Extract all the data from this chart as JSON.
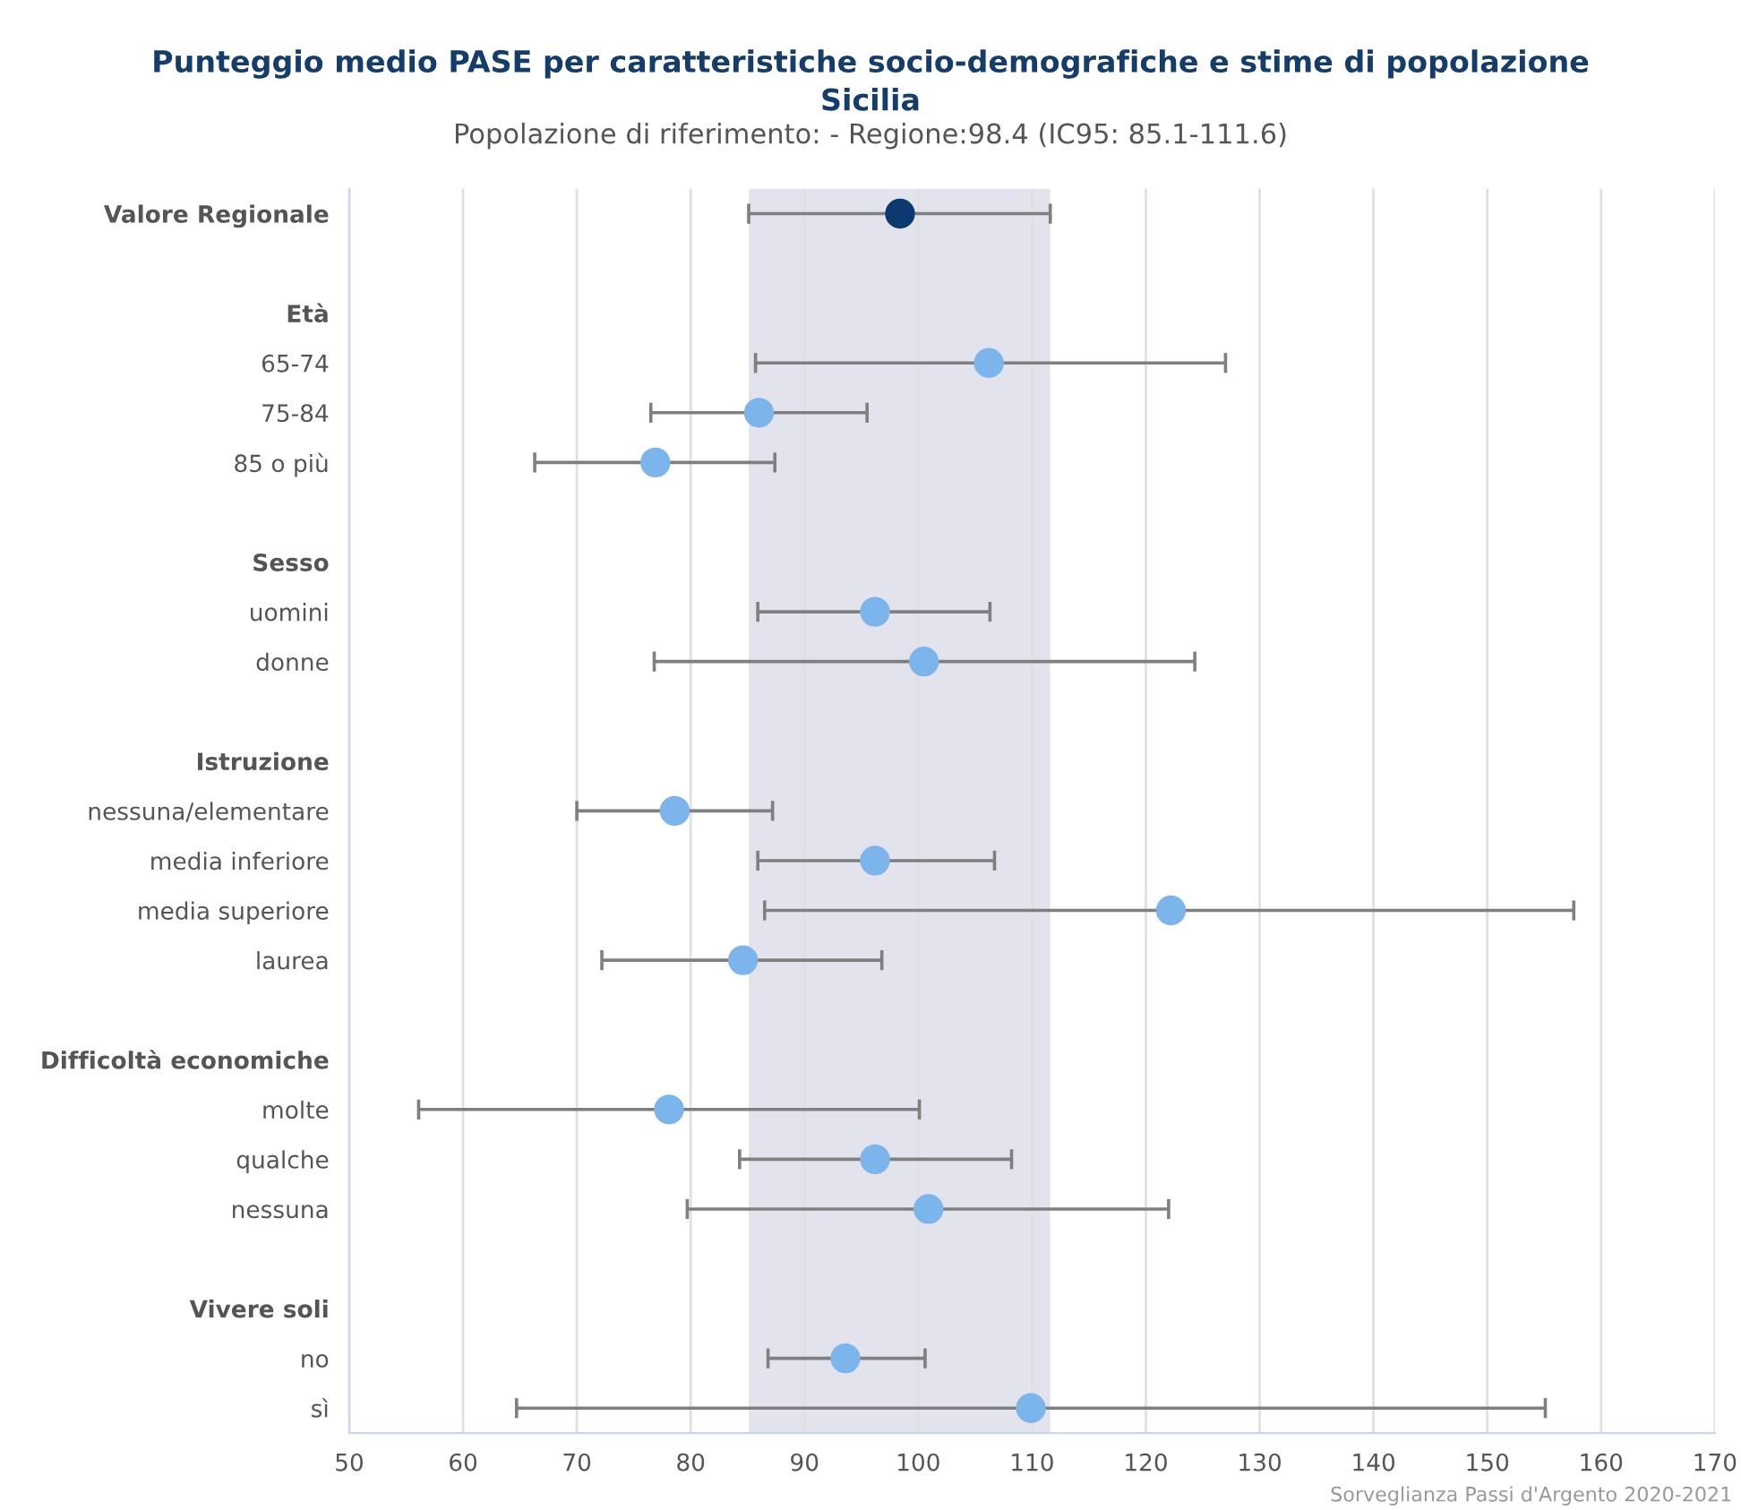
{
  "chart_data": {
    "type": "scatter",
    "orientation": "horizontal",
    "title": "Punteggio medio PASE per caratteristiche socio-demografiche e stime di popolazione\nSicilia",
    "subtitle": "Popolazione di riferimento: - Regione:98.4 (IC95: 85.1-111.6)",
    "categories": [
      "Valore Regionale",
      null,
      "Età",
      "65-74",
      "75-84",
      "85 o più",
      null,
      "Sesso",
      "uomini",
      "donne",
      null,
      "Istruzione",
      "nessuna/elementare",
      "media inferiore",
      "media superiore",
      "laurea",
      null,
      "Difficoltà economiche",
      "molte",
      "qualche",
      "nessuna",
      null,
      "Vivere soli",
      "no",
      "sì"
    ],
    "series": [
      {
        "color": "#0d3a6e",
        "values": [
          98.4,
          null,
          null,
          null,
          null,
          null,
          null,
          null,
          null,
          null,
          null,
          null,
          null,
          null,
          null,
          null,
          null,
          null,
          null,
          null,
          null,
          null,
          null,
          null,
          null
        ],
        "errors": [
          [
            85.1,
            111.6
          ],
          null,
          null,
          null,
          null,
          null,
          null,
          null,
          null,
          null,
          null,
          null,
          null,
          null,
          null,
          null,
          null,
          null,
          null,
          null,
          null,
          null,
          null,
          null,
          null
        ]
      },
      {
        "color": "#7cb5ec",
        "values": [
          null,
          null,
          null,
          106.2,
          86.0,
          76.9,
          null,
          null,
          96.2,
          100.5,
          null,
          null,
          78.6,
          96.2,
          122.2,
          84.6,
          null,
          null,
          78.1,
          96.2,
          100.9,
          null,
          null,
          93.6,
          109.9
        ],
        "errors": [
          null,
          null,
          null,
          [
            85.7,
            127.0
          ],
          [
            76.5,
            95.5
          ],
          [
            66.3,
            87.4
          ],
          null,
          null,
          [
            85.9,
            106.3
          ],
          [
            76.8,
            124.3
          ],
          null,
          null,
          [
            70.0,
            87.2
          ],
          [
            85.9,
            106.7
          ],
          [
            86.5,
            157.6
          ],
          [
            72.2,
            96.8
          ],
          null,
          null,
          [
            56.1,
            100.1
          ],
          [
            84.3,
            108.2
          ],
          [
            79.7,
            122.0
          ],
          null,
          null,
          [
            86.8,
            100.6
          ],
          [
            64.7,
            155.1
          ]
        ]
      }
    ],
    "bands": [
      {
        "axis": "x",
        "from": 85.1,
        "to": 111.6,
        "color": "#e3e3ee"
      }
    ],
    "xlim": [
      50,
      170
    ],
    "xticks": [
      50,
      60,
      70,
      80,
      90,
      100,
      110,
      120,
      130,
      140,
      150,
      160,
      170
    ],
    "grid": "x",
    "marker": "circle",
    "annotations": [
      "Sorveglianza Passi d'Argento 2020-2021"
    ]
  }
}
